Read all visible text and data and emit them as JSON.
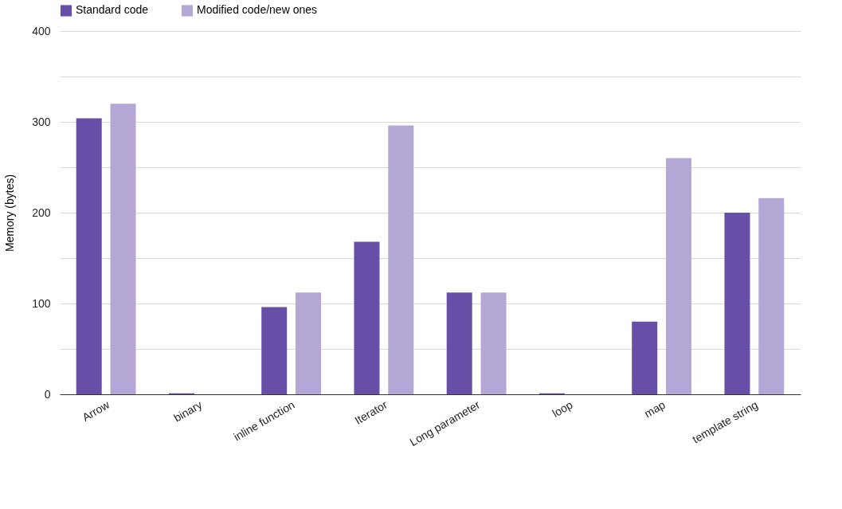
{
  "chart_data": {
    "type": "bar",
    "ylabel": "Memory (bytes)",
    "categories": [
      "Arrow",
      "binary",
      "inline function",
      "Iterator",
      "Long parameter",
      "loop",
      "map",
      "template string"
    ],
    "series": [
      {
        "name": "Standard code",
        "color": "#674ea7",
        "values": [
          304,
          1,
          96,
          168,
          112,
          1,
          80,
          200
        ]
      },
      {
        "name": "Modified code/new ones",
        "color": "#b4a7d6",
        "values": [
          320,
          0,
          112,
          296,
          112,
          0,
          260,
          216
        ]
      }
    ],
    "ylim": [
      0,
      400
    ],
    "yticks": [
      0,
      {
        "value": 50,
        "label": null
      },
      100,
      {
        "value": 150,
        "label": null
      },
      200,
      {
        "value": 250,
        "label": null
      },
      300,
      {
        "value": 350,
        "label": null
      },
      400
    ],
    "grid": "y",
    "legend": "top"
  }
}
